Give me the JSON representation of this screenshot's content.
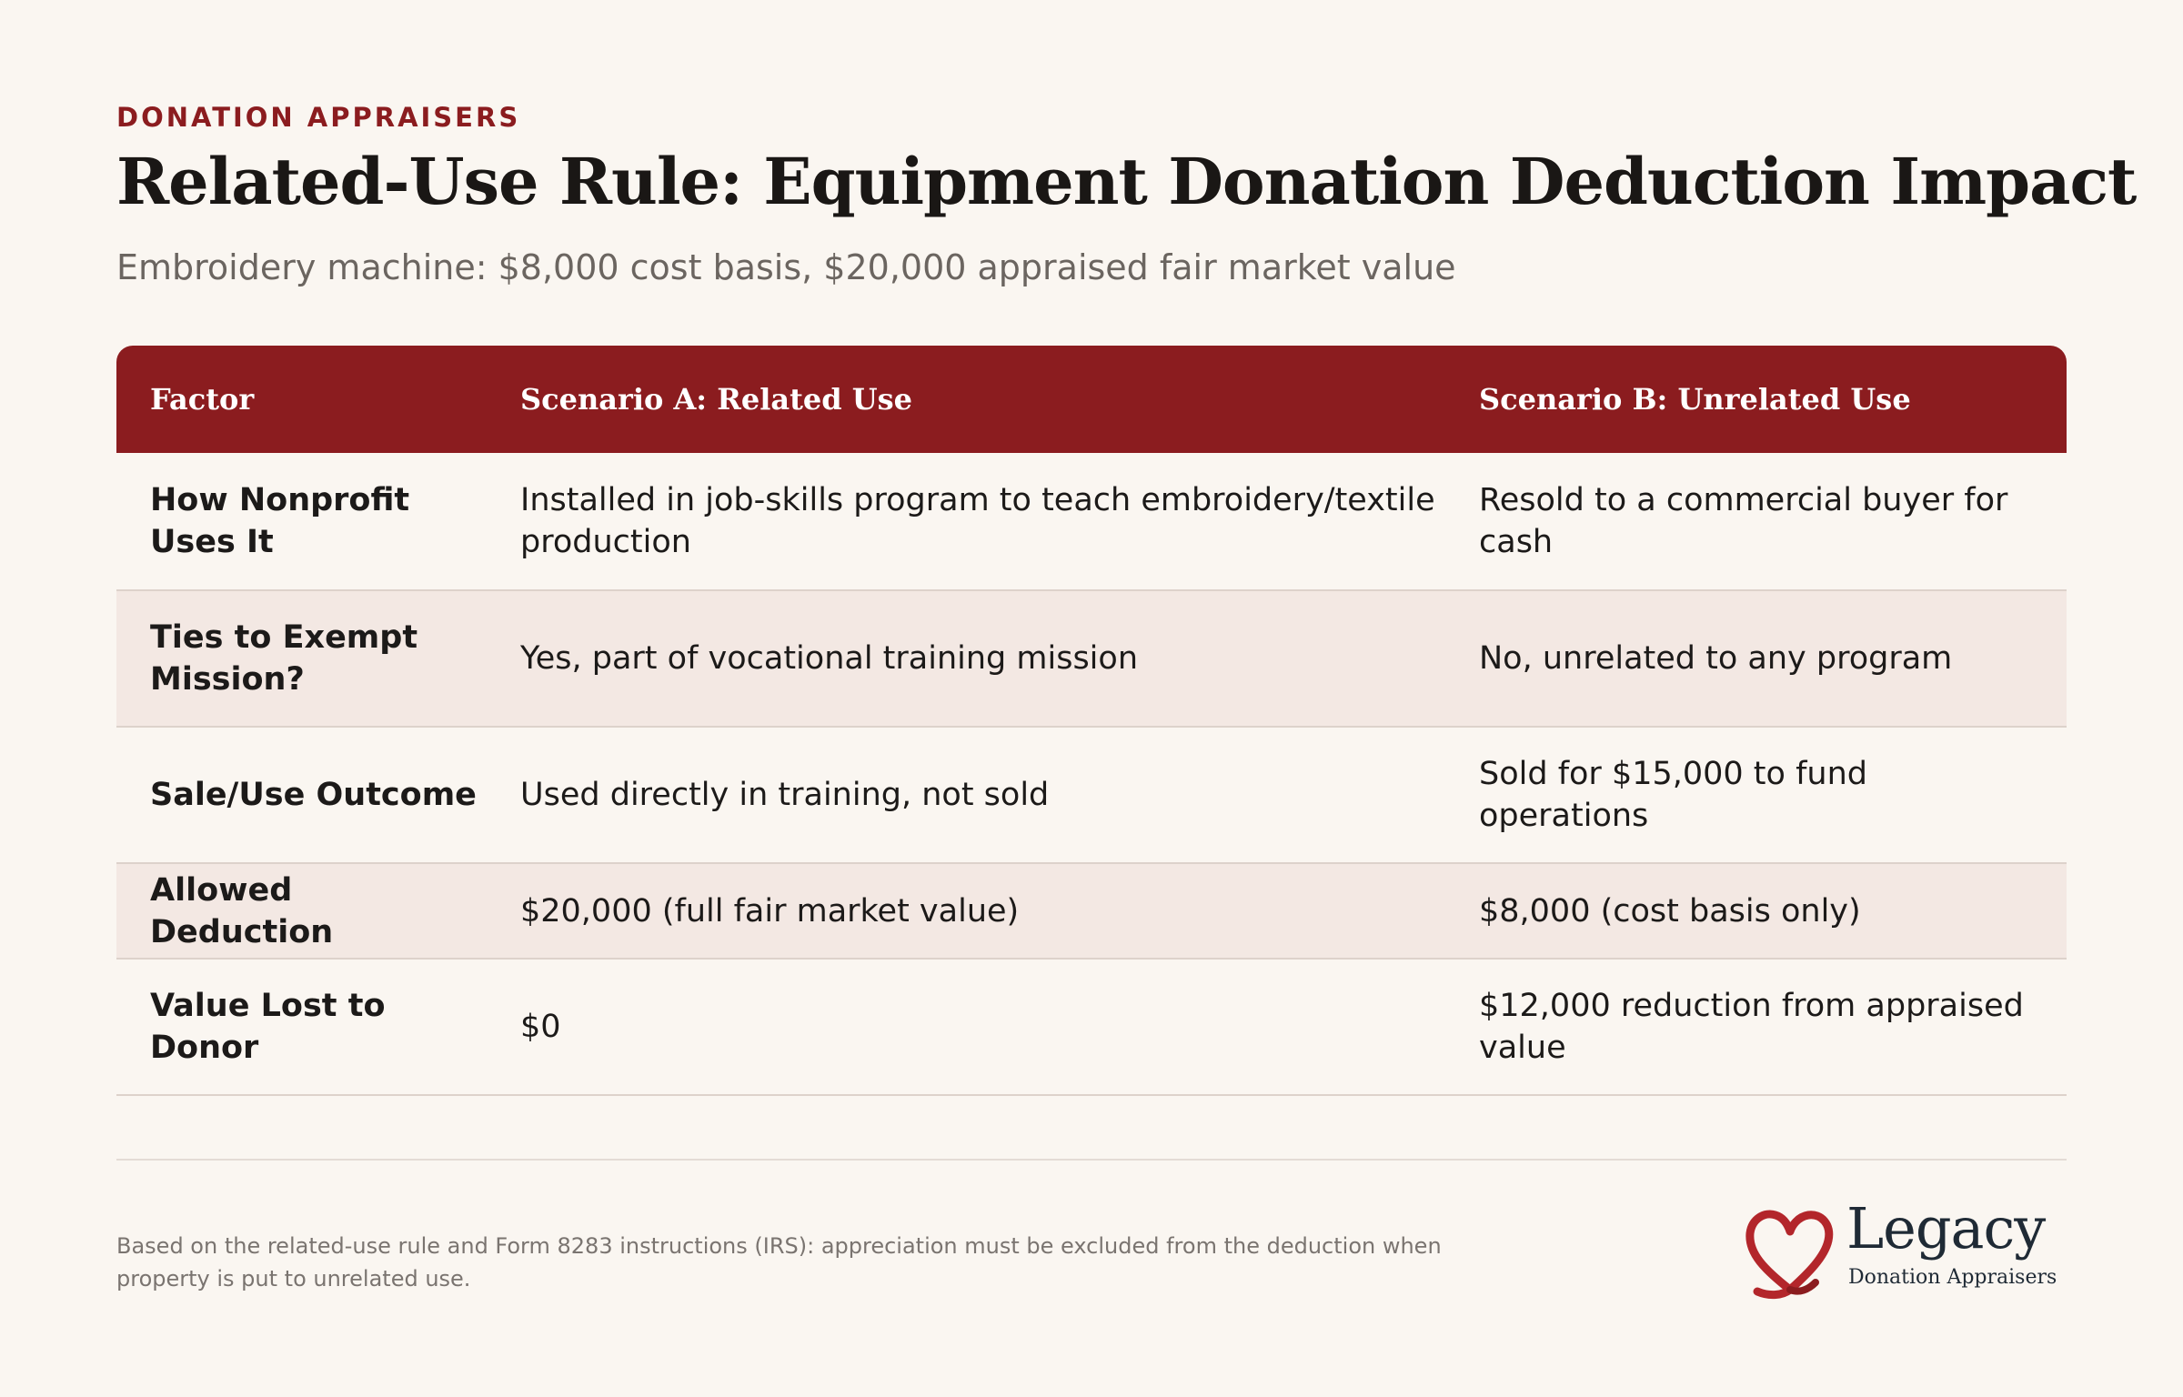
{
  "eyebrow": "DONATION APPRAISERS",
  "title": "Related-Use Rule: Equipment Donation Deduction Impact",
  "subtitle": "Embroidery machine: $8,000 cost basis, $20,000 appraised fair market value",
  "table": {
    "headers": [
      "Factor",
      "Scenario A: Related Use",
      "Scenario B: Unrelated Use"
    ],
    "rows": [
      [
        "How Nonprofit Uses It",
        "Installed in job-skills program to teach embroidery/textile production",
        "Resold to a commercial buyer for cash"
      ],
      [
        "Ties to Exempt Mission?",
        "Yes, part of vocational training mission",
        "No, unrelated to any program"
      ],
      [
        "Sale/Use Outcome",
        "Used directly in training, not sold",
        "Sold for $15,000 to fund operations"
      ],
      [
        "Allowed Deduction",
        "$20,000 (full fair market value)",
        "$8,000 (cost basis only)"
      ],
      [
        "Value Lost to Donor",
        "$0",
        "$12,000 reduction from appraised value"
      ]
    ]
  },
  "footnote": "Based on the related-use rule and Form 8283 instructions (IRS): appreciation must be excluded from the deduction when property is put to unrelated use.",
  "logo": {
    "name": "Legacy",
    "tagline": "Donation Appraisers",
    "icon": "heart-ribbon-icon"
  },
  "colors": {
    "accent": "#8b1c1f",
    "background": "#faf6f1",
    "row_alt": "#f3e8e3"
  }
}
